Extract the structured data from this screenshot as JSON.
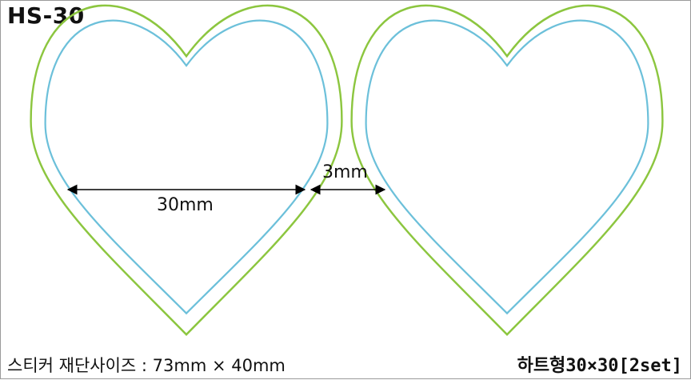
{
  "product_code": "HS-30",
  "dimensions": {
    "width_label": "30mm",
    "gap_label": "3mm"
  },
  "footer": {
    "cut_size": "스티커 재단사이즈 : 73mm × 40mm",
    "shape_name": "하트형30×30[2set]"
  },
  "colors": {
    "cut_line": "#8cc63f",
    "print_line": "#6cc0da",
    "dimension_line": "#000000",
    "border": "#9a9a9a"
  }
}
